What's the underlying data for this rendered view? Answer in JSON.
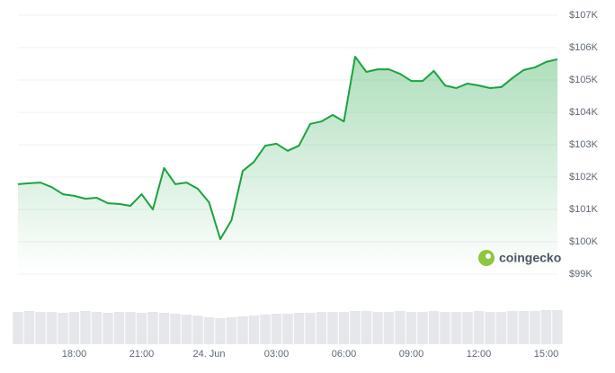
{
  "chart_data": {
    "type": "area",
    "categories": [
      null,
      null,
      null,
      null,
      null,
      "18:00",
      null,
      null,
      null,
      null,
      null,
      "21:00",
      null,
      null,
      null,
      null,
      null,
      "24. Jun",
      null,
      null,
      null,
      null,
      null,
      "03:00",
      null,
      null,
      null,
      null,
      null,
      "06:00",
      null,
      null,
      null,
      null,
      null,
      "09:00",
      null,
      null,
      null,
      null,
      null,
      "12:00",
      null,
      null,
      null,
      null,
      null,
      "15:00",
      null
    ],
    "values": [
      101780,
      101810,
      101830,
      101690,
      101470,
      101420,
      101330,
      101360,
      101190,
      101170,
      101110,
      101470,
      101000,
      102280,
      101780,
      101830,
      101640,
      101220,
      100080,
      100670,
      102190,
      102470,
      102970,
      103030,
      102810,
      102970,
      103640,
      103720,
      103920,
      103720,
      105720,
      105250,
      105330,
      105330,
      105190,
      104970,
      104970,
      105280,
      104830,
      104750,
      104890,
      104830,
      104750,
      104780,
      105060,
      105310,
      105390,
      105560,
      105640
    ],
    "volume": [
      36,
      37,
      36,
      36,
      35,
      36,
      37,
      36,
      35,
      36,
      36,
      35,
      36,
      35,
      34,
      33,
      32,
      30,
      29,
      30,
      31,
      32,
      33,
      34,
      34,
      35,
      35,
      36,
      36,
      36,
      37,
      37,
      36,
      36,
      37,
      36,
      36,
      37,
      36,
      36,
      36,
      37,
      36,
      36,
      37,
      37,
      37,
      38,
      38
    ],
    "color": "#1aa33f",
    "ylim": [
      99000,
      107000
    ],
    "yticks": [
      {
        "value": 99000,
        "label": "$99K"
      },
      {
        "value": 100000,
        "label": "$100K"
      },
      {
        "value": 101000,
        "label": "$101K"
      },
      {
        "value": 102000,
        "label": "$102K"
      },
      {
        "value": 103000,
        "label": "$103K"
      },
      {
        "value": 104000,
        "label": "$104K"
      },
      {
        "value": 105000,
        "label": "$105K"
      },
      {
        "value": 106000,
        "label": "$106K"
      },
      {
        "value": 107000,
        "label": "$107K"
      }
    ],
    "grid": true,
    "watermark": "coingecko"
  }
}
